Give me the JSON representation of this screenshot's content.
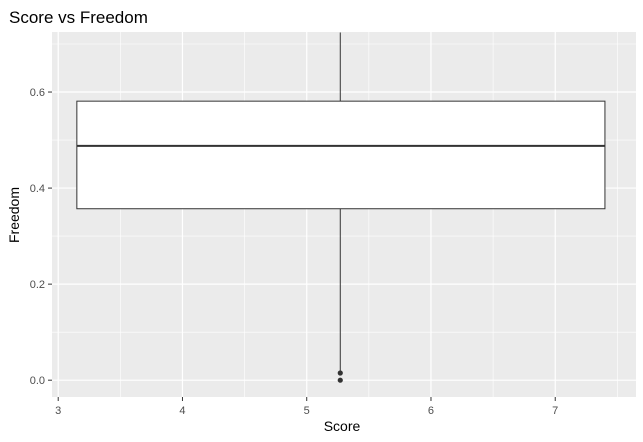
{
  "chart_data": {
    "type": "boxplot",
    "title": "Score vs Freedom",
    "xlabel": "Score",
    "ylabel": "Freedom",
    "xlim": [
      2.95,
      7.65
    ],
    "ylim": [
      -0.035,
      0.725
    ],
    "x_ticks": [
      3,
      4,
      5,
      6,
      7
    ],
    "y_ticks": [
      0.0,
      0.2,
      0.4,
      0.6
    ],
    "y_tick_labels": [
      "0.0",
      "0.2",
      "0.4",
      "0.6"
    ],
    "grid": true,
    "panel_background": "#ebebeb",
    "grid_color": "#ffffff",
    "box": {
      "x_left": 3.15,
      "x_right": 7.4,
      "x_center": 5.27,
      "q1": 0.357,
      "median": 0.488,
      "q3": 0.581,
      "whisker_low": 0.02,
      "whisker_high": 0.724,
      "outliers": [
        0.015,
        0.0
      ],
      "fill": "#ffffff",
      "line_color": "#333333",
      "outlier_color": "#333333"
    }
  }
}
